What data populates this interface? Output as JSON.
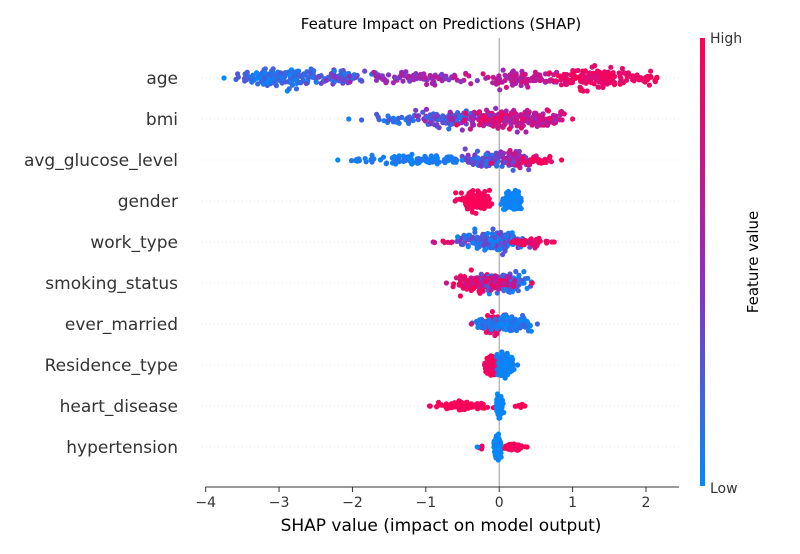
{
  "chart_data": {
    "type": "scatter",
    "subtype": "shap-beeswarm",
    "title": "Feature Impact on Predictions (SHAP)",
    "xlabel": "SHAP value (impact on model output)",
    "ylabel": "",
    "xlim": [
      -4.05,
      2.45
    ],
    "x_ticks": [
      -4,
      -3,
      -2,
      -1,
      0,
      1,
      2
    ],
    "x_tick_labels": [
      "−4",
      "−3",
      "−2",
      "−1",
      "0",
      "1",
      "2"
    ],
    "zero_line": true,
    "grid": false,
    "colorbar": {
      "label": "Feature value",
      "high_label": "High",
      "low_label": "Low",
      "low_color": "#008bfb",
      "mid_color": "#9a28b8",
      "high_color": "#ff0052"
    },
    "features": [
      {
        "name": "age",
        "range": [
          -3.75,
          2.15
        ],
        "clusters": [
          {
            "center": -3.0,
            "spread": 0.45,
            "color_lo": 0.0,
            "color_hi": 0.3,
            "n": 150,
            "width": 1.0
          },
          {
            "center": -2.2,
            "spread": 0.35,
            "color_lo": 0.05,
            "color_hi": 0.45,
            "n": 70,
            "width": 0.7
          },
          {
            "center": -1.0,
            "spread": 0.6,
            "color_lo": 0.35,
            "color_hi": 0.7,
            "n": 90,
            "width": 0.6
          },
          {
            "center": 0.3,
            "spread": 0.5,
            "color_lo": 0.5,
            "color_hi": 0.85,
            "n": 90,
            "width": 0.75
          },
          {
            "center": 1.3,
            "spread": 0.4,
            "color_lo": 0.8,
            "color_hi": 1.0,
            "n": 140,
            "width": 1.0
          },
          {
            "center": 1.9,
            "spread": 0.2,
            "color_lo": 0.85,
            "color_hi": 1.0,
            "n": 25,
            "width": 0.5
          }
        ]
      },
      {
        "name": "bmi",
        "range": [
          -2.05,
          1.0
        ],
        "clusters": [
          {
            "center": -1.3,
            "spread": 0.35,
            "color_lo": 0.05,
            "color_hi": 0.3,
            "n": 30,
            "width": 0.5
          },
          {
            "center": -0.7,
            "spread": 0.35,
            "color_lo": 0.1,
            "color_hi": 0.55,
            "n": 90,
            "width": 1.0
          },
          {
            "center": -0.1,
            "spread": 0.35,
            "color_lo": 0.45,
            "color_hi": 1.0,
            "n": 110,
            "width": 1.0
          },
          {
            "center": 0.5,
            "spread": 0.35,
            "color_lo": 0.5,
            "color_hi": 0.9,
            "n": 110,
            "width": 1.0
          }
        ]
      },
      {
        "name": "avg_glucose_level",
        "range": [
          -2.2,
          0.85
        ],
        "clusters": [
          {
            "center": -1.9,
            "spread": 0.15,
            "color_lo": 0.0,
            "color_hi": 0.1,
            "n": 12,
            "width": 0.2
          },
          {
            "center": -1.0,
            "spread": 0.6,
            "color_lo": 0.0,
            "color_hi": 0.15,
            "n": 100,
            "width": 0.45
          },
          {
            "center": -0.15,
            "spread": 0.3,
            "color_lo": 0.05,
            "color_hi": 0.5,
            "n": 100,
            "width": 1.0
          },
          {
            "center": 0.2,
            "spread": 0.2,
            "color_lo": 0.3,
            "color_hi": 0.9,
            "n": 60,
            "width": 0.9
          },
          {
            "center": 0.55,
            "spread": 0.2,
            "color_lo": 0.85,
            "color_hi": 1.0,
            "n": 30,
            "width": 0.4
          }
        ]
      },
      {
        "name": "gender",
        "range": [
          -0.6,
          0.3
        ],
        "clusters": [
          {
            "center": -0.32,
            "spread": 0.15,
            "color_lo": 0.92,
            "color_hi": 1.0,
            "n": 170,
            "width": 1.0
          },
          {
            "center": 0.18,
            "spread": 0.1,
            "color_lo": 0.0,
            "color_hi": 0.08,
            "n": 160,
            "width": 1.0
          }
        ]
      },
      {
        "name": "work_type",
        "range": [
          -0.9,
          0.75
        ],
        "clusters": [
          {
            "center": -0.65,
            "spread": 0.2,
            "color_lo": 0.7,
            "color_hi": 1.0,
            "n": 8,
            "width": 0.2
          },
          {
            "center": -0.1,
            "spread": 0.3,
            "color_lo": 0.0,
            "color_hi": 0.45,
            "n": 200,
            "width": 1.0
          },
          {
            "center": 0.4,
            "spread": 0.25,
            "color_lo": 0.7,
            "color_hi": 1.0,
            "n": 40,
            "width": 0.4
          }
        ]
      },
      {
        "name": "smoking_status",
        "range": [
          -0.72,
          0.45
        ],
        "clusters": [
          {
            "center": -0.3,
            "spread": 0.25,
            "color_lo": 0.75,
            "color_hi": 1.0,
            "n": 120,
            "width": 1.0
          },
          {
            "center": 0.1,
            "spread": 0.25,
            "color_lo": 0.0,
            "color_hi": 0.3,
            "n": 130,
            "width": 1.0
          },
          {
            "center": -0.05,
            "spread": 0.2,
            "color_lo": 0.5,
            "color_hi": 1.0,
            "n": 60,
            "width": 0.8
          }
        ]
      },
      {
        "name": "ever_married",
        "range": [
          -0.38,
          0.52
        ],
        "clusters": [
          {
            "center": -0.08,
            "spread": 0.12,
            "color_lo": 0.8,
            "color_hi": 1.0,
            "n": 110,
            "width": 1.0
          },
          {
            "center": 0.15,
            "spread": 0.2,
            "color_lo": 0.0,
            "color_hi": 0.2,
            "n": 120,
            "width": 0.8
          },
          {
            "center": -0.2,
            "spread": 0.1,
            "color_lo": 0.0,
            "color_hi": 0.2,
            "n": 30,
            "width": 0.4
          }
        ]
      },
      {
        "name": "Residence_type",
        "range": [
          -0.2,
          0.25
        ],
        "clusters": [
          {
            "center": -0.08,
            "spread": 0.08,
            "color_lo": 0.88,
            "color_hi": 1.0,
            "n": 150,
            "width": 1.0
          },
          {
            "center": 0.09,
            "spread": 0.08,
            "color_lo": 0.0,
            "color_hi": 0.08,
            "n": 160,
            "width": 1.0
          }
        ]
      },
      {
        "name": "heart_disease",
        "range": [
          -0.95,
          0.35
        ],
        "clusters": [
          {
            "center": -0.5,
            "spread": 0.32,
            "color_lo": 0.92,
            "color_hi": 1.0,
            "n": 90,
            "width": 0.35
          },
          {
            "center": 0.0,
            "spread": 0.03,
            "color_lo": 0.0,
            "color_hi": 0.05,
            "n": 200,
            "width": 1.0
          },
          {
            "center": 0.28,
            "spread": 0.07,
            "color_lo": 0.9,
            "color_hi": 1.0,
            "n": 8,
            "width": 0.2
          }
        ]
      },
      {
        "name": "hypertension",
        "range": [
          -0.3,
          0.38
        ],
        "clusters": [
          {
            "center": -0.02,
            "spread": 0.03,
            "color_lo": 0.0,
            "color_hi": 0.05,
            "n": 200,
            "width": 1.0
          },
          {
            "center": 0.2,
            "spread": 0.1,
            "color_lo": 0.9,
            "color_hi": 1.0,
            "n": 60,
            "width": 0.35
          },
          {
            "center": -0.25,
            "spread": 0.03,
            "color_lo": 0.9,
            "color_hi": 1.0,
            "n": 4,
            "width": 0.2
          }
        ]
      }
    ]
  }
}
